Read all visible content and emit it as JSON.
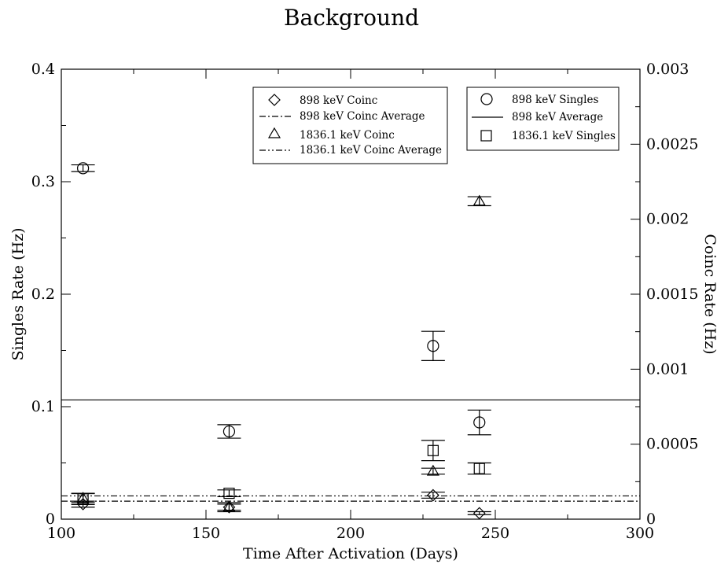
{
  "chart_data": {
    "type": "scatter",
    "title": "Background",
    "xlabel": "Time After Activation (Days)",
    "ylabel": "Singles Rate (Hz)",
    "y2label": "Coinc Rate (Hz)",
    "xlim": [
      100,
      300
    ],
    "ylim": [
      0,
      0.4
    ],
    "y2lim": [
      0,
      0.003
    ],
    "x_ticks": [
      "100",
      "150",
      "200",
      "250",
      "300"
    ],
    "y_ticks": [
      "0",
      "0.1",
      "0.2",
      "0.3",
      "0.4"
    ],
    "y2_ticks": [
      "0",
      "0.0005",
      "0.001",
      "0.0015",
      "0.002",
      "0.0025",
      "0.003"
    ],
    "grid": false,
    "legend_left": {
      "placement": "top-center",
      "entries": [
        "898 keV Coinc",
        "898 keV Coinc Average",
        "1836.1 keV Coinc",
        "1836.1 keV Coinc Average"
      ]
    },
    "legend_right": {
      "placement": "top-right",
      "entries": [
        "898 keV Singles",
        "898 keV Average",
        "1836.1 keV Singles"
      ]
    },
    "series": [
      {
        "name": "898 keV Coinc",
        "axis": "right",
        "marker": "diamond",
        "points": [
          {
            "x": 107.5,
            "y": 0.0001,
            "err": 2e-05
          },
          {
            "x": 158,
            "y": 8e-05,
            "err": 2e-05
          },
          {
            "x": 228.5,
            "y": 0.00016,
            "err": 2e-05
          },
          {
            "x": 244.5,
            "y": 4e-05,
            "err": 1e-05
          }
        ]
      },
      {
        "name": "898 keV Coinc Average",
        "axis": "right",
        "style": "dash-dot",
        "value": 0.00012
      },
      {
        "name": "1836.1 keV Coinc",
        "axis": "right",
        "marker": "triangle",
        "points": [
          {
            "x": 107.5,
            "y": 0.00014,
            "err": 3e-05
          },
          {
            "x": 158,
            "y": 8e-05,
            "err": 3e-05
          },
          {
            "x": 228.5,
            "y": 0.00032,
            "err": 2e-05
          },
          {
            "x": 244.5,
            "y": 0.00212,
            "err": 3e-05
          }
        ]
      },
      {
        "name": "1836.1 keV Coinc Average",
        "axis": "right",
        "style": "dash-dot-dot",
        "value": 0.000155
      },
      {
        "name": "898 keV Singles",
        "axis": "left",
        "marker": "circle",
        "points": [
          {
            "x": 107.5,
            "y": 0.312,
            "err": 0.003
          },
          {
            "x": 158,
            "y": 0.078,
            "err": 0.006
          },
          {
            "x": 228.5,
            "y": 0.154,
            "err": 0.013
          },
          {
            "x": 244.5,
            "y": 0.086,
            "err": 0.011
          }
        ]
      },
      {
        "name": "898 keV Average",
        "axis": "left",
        "style": "solid",
        "value": 0.106
      },
      {
        "name": "1836.1 keV Singles",
        "axis": "left",
        "marker": "square",
        "points": [
          {
            "x": 107.5,
            "y": 0.018,
            "err": 0.005
          },
          {
            "x": 158,
            "y": 0.023,
            "err": 0.003
          },
          {
            "x": 228.5,
            "y": 0.061,
            "err": 0.009
          },
          {
            "x": 244.5,
            "y": 0.045,
            "err": 0.005
          }
        ]
      }
    ]
  }
}
